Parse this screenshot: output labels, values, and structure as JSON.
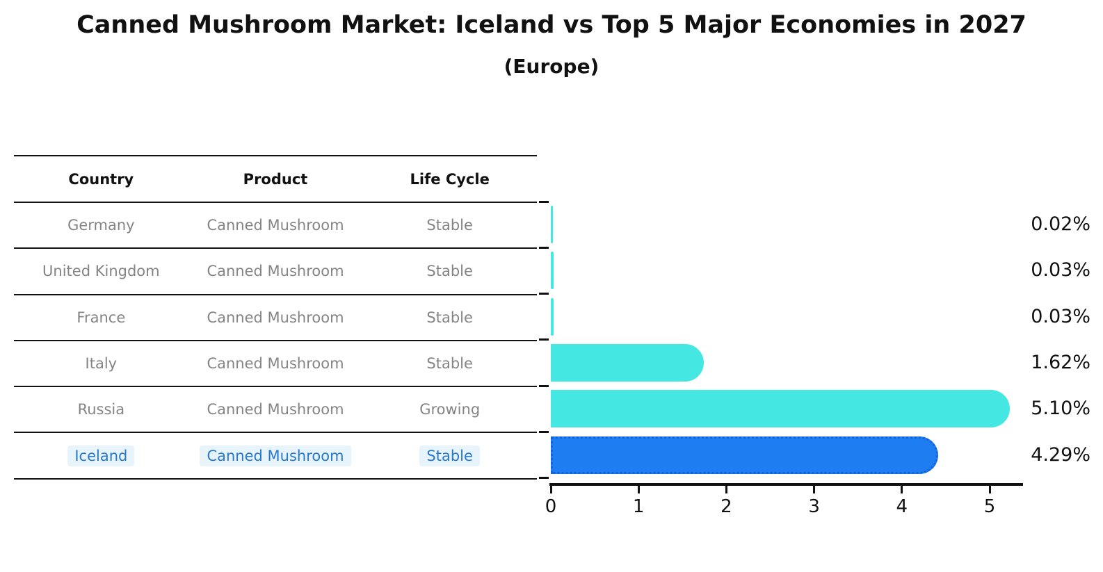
{
  "title": "Canned Mushroom Market: Iceland vs Top 5 Major Economies in 2027",
  "subtitle": "(Europe)",
  "table": {
    "headers": [
      "Country",
      "Product",
      "Life Cycle"
    ],
    "rows": [
      {
        "country": "Germany",
        "product": "Canned Mushroom",
        "life_cycle": "Stable",
        "highlight": false
      },
      {
        "country": "United Kingdom",
        "product": "Canned Mushroom",
        "life_cycle": "Stable",
        "highlight": false
      },
      {
        "country": "France",
        "product": "Canned Mushroom",
        "life_cycle": "Stable",
        "highlight": false
      },
      {
        "country": "Italy",
        "product": "Canned Mushroom",
        "life_cycle": "Stable",
        "highlight": false
      },
      {
        "country": "Russia",
        "product": "Canned Mushroom",
        "life_cycle": "Growing",
        "highlight": false
      },
      {
        "country": "Iceland",
        "product": "Canned Mushroom",
        "life_cycle": "Stable",
        "highlight": true
      }
    ]
  },
  "chart_data": {
    "type": "bar",
    "orientation": "horizontal",
    "title": "Canned Mushroom Market: Iceland vs Top 5 Major Economies in 2027",
    "subtitle": "(Europe)",
    "categories": [
      "Germany",
      "United Kingdom",
      "France",
      "Italy",
      "Russia",
      "Iceland"
    ],
    "values": [
      0.02,
      0.03,
      0.03,
      1.62,
      5.1,
      4.29
    ],
    "value_labels": [
      "0.02%",
      "0.03%",
      "0.03%",
      "1.62%",
      "5.10%",
      "4.29%"
    ],
    "xlabel": "",
    "ylabel": "",
    "xlim": [
      0,
      5.35
    ],
    "xticks": [
      "0",
      "1",
      "2",
      "3",
      "4",
      "5"
    ],
    "grid": false,
    "legend": false,
    "highlight_index": 5
  },
  "colors": {
    "bar_default": "#45E7E3",
    "bar_highlight": "#1E7DF0",
    "bar_highlight_border": "#1563DB",
    "highlight_text": "#2878CD",
    "highlight_text_bg": "#E8F4FC",
    "row_text": "#848484",
    "axis": "#111111"
  }
}
